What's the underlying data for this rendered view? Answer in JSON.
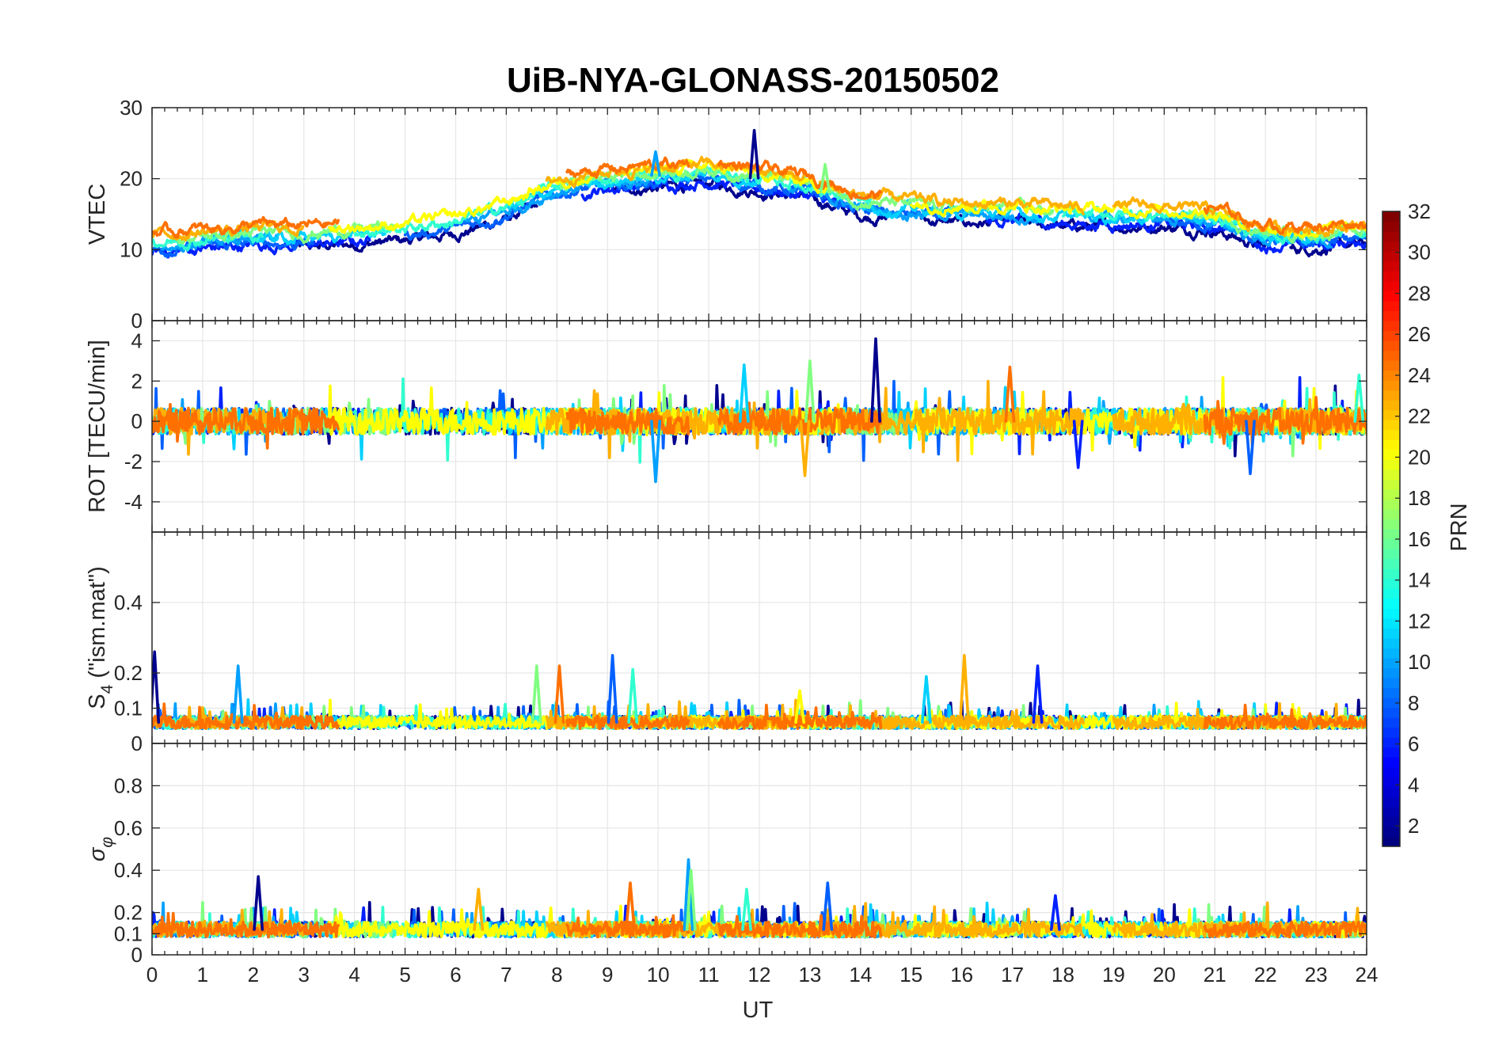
{
  "chart_data": {
    "type": "line",
    "title": "UiB-NYA-GLONASS-20150502",
    "xlabel": "UT",
    "xlim": [
      0,
      24
    ],
    "xticks": [
      0,
      1,
      2,
      3,
      4,
      5,
      6,
      7,
      8,
      9,
      10,
      11,
      12,
      13,
      14,
      15,
      16,
      17,
      18,
      19,
      20,
      21,
      22,
      23,
      24
    ],
    "grid": true,
    "panels": [
      {
        "id": "vtec",
        "ylabel": "VTEC",
        "ylim": [
          0,
          30
        ],
        "yticks": [
          0,
          10,
          20,
          30
        ],
        "baseline_points": [
          [
            0,
            11
          ],
          [
            1,
            11.5
          ],
          [
            2,
            12
          ],
          [
            3,
            12
          ],
          [
            4,
            12.5
          ],
          [
            5,
            13
          ],
          [
            6,
            14
          ],
          [
            7,
            16
          ],
          [
            8,
            19
          ],
          [
            9,
            20
          ],
          [
            10,
            20.5
          ],
          [
            11,
            21
          ],
          [
            12,
            20
          ],
          [
            13,
            19
          ],
          [
            14,
            16.5
          ],
          [
            15,
            16
          ],
          [
            16,
            15.5
          ],
          [
            17,
            15.5
          ],
          [
            18,
            15
          ],
          [
            19,
            15
          ],
          [
            20,
            15
          ],
          [
            21,
            14.5
          ],
          [
            22,
            12
          ],
          [
            23,
            12
          ],
          [
            24,
            12.5
          ]
        ],
        "peak_points": [
          [
            11.9,
            26.8
          ],
          [
            9.95,
            23.8
          ],
          [
            13.3,
            22
          ]
        ]
      },
      {
        "id": "rot",
        "ylabel": "ROT [TECU/min]",
        "ylim": [
          -5.5,
          5
        ],
        "yticks": [
          -4,
          -2,
          0,
          2,
          4
        ],
        "spikes": [
          [
            14.3,
            4.1
          ],
          [
            9.95,
            -3.0
          ],
          [
            13.0,
            3.0
          ],
          [
            16.95,
            2.7
          ],
          [
            21.7,
            -2.6
          ],
          [
            23.85,
            2.3
          ],
          [
            12.9,
            -2.7
          ],
          [
            18.3,
            -2.3
          ],
          [
            11.7,
            2.8
          ]
        ]
      },
      {
        "id": "s4",
        "ylabel": "S4 (\"ism.mat\")",
        "ylabel_main": "S",
        "ylabel_sub": "4",
        "ylabel_rest": " (\"ism.mat\")",
        "ylim": [
          0,
          0.6
        ],
        "yticks": [
          0,
          0.1,
          0.2,
          0.4
        ],
        "baseline": 0.06,
        "spikes": [
          [
            0.05,
            0.26
          ],
          [
            1.7,
            0.22
          ],
          [
            7.6,
            0.22
          ],
          [
            8.05,
            0.22
          ],
          [
            9.1,
            0.25
          ],
          [
            9.5,
            0.21
          ],
          [
            16.05,
            0.25
          ],
          [
            17.5,
            0.22
          ],
          [
            15.3,
            0.19
          ],
          [
            12.8,
            0.15
          ]
        ]
      },
      {
        "id": "sigma",
        "ylabel": "σφ",
        "ylabel_main": "σ",
        "ylabel_sub": "φ",
        "ylim": [
          0,
          1
        ],
        "yticks": [
          0,
          0.1,
          0.2,
          0.4,
          0.6,
          0.8
        ],
        "baseline": 0.12,
        "spikes": [
          [
            2.1,
            0.37
          ],
          [
            10.6,
            0.45
          ],
          [
            10.65,
            0.4
          ],
          [
            9.45,
            0.34
          ],
          [
            13.35,
            0.34
          ],
          [
            11.75,
            0.31
          ],
          [
            6.45,
            0.31
          ],
          [
            17.85,
            0.28
          ]
        ]
      }
    ],
    "colorbar": {
      "label": "PRN",
      "ticks": [
        2,
        4,
        6,
        8,
        10,
        12,
        14,
        16,
        18,
        20,
        22,
        24,
        26,
        28,
        30,
        32
      ],
      "range": [
        1,
        32
      ],
      "colormap": "jet"
    },
    "series": [
      {
        "prn": 2,
        "color": "#00008f"
      },
      {
        "prn": 5,
        "color": "#0020ff"
      },
      {
        "prn": 7,
        "color": "#0060ff"
      },
      {
        "prn": 10,
        "color": "#00a0ff"
      },
      {
        "prn": 12,
        "color": "#00d0ff"
      },
      {
        "prn": 14,
        "color": "#30ffcf"
      },
      {
        "prn": 17,
        "color": "#80ff80"
      },
      {
        "prn": 20,
        "color": "#ffff00"
      },
      {
        "prn": 22,
        "color": "#ffb000"
      },
      {
        "prn": 24,
        "color": "#ff7000"
      }
    ]
  }
}
